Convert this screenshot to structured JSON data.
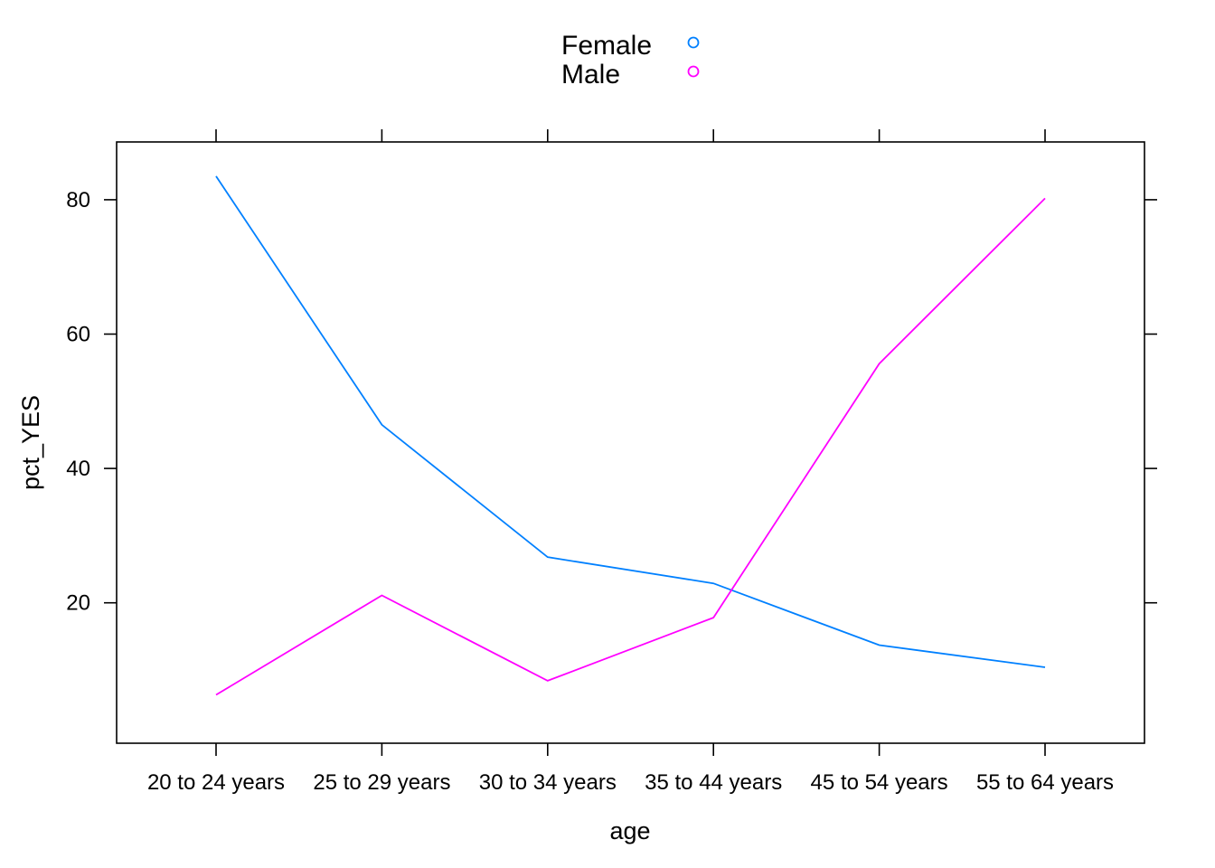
{
  "chart_data": {
    "type": "line",
    "xlabel": "age",
    "ylabel": "pct_YES",
    "categories": [
      "20 to 24 years",
      "25 to 29 years",
      "30 to 34 years",
      "35 to 44 years",
      "45 to 54 years",
      "55 to 64 years"
    ],
    "ylim": [
      -0.9,
      88.6
    ],
    "yticks": [
      20,
      40,
      60,
      80
    ],
    "grid": false,
    "legend_position": "top-center",
    "series": [
      {
        "name": "Female",
        "color": "#0080ff",
        "values": [
          83.5,
          46.5,
          26.8,
          22.9,
          13.7,
          10.4
        ]
      },
      {
        "name": "Male",
        "color": "#ff00ff",
        "values": [
          6.3,
          21.1,
          8.4,
          17.8,
          55.6,
          80.2
        ]
      }
    ]
  }
}
